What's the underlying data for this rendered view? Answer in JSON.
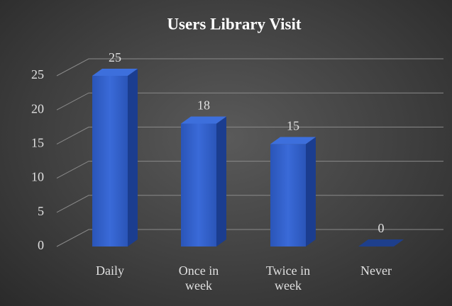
{
  "chart_data": {
    "type": "bar",
    "title": "Users Library Visit",
    "categories": [
      "Daily",
      "Once in week",
      "Twice in week",
      "Never"
    ],
    "values": [
      25,
      18,
      15,
      0
    ],
    "color": "#2f5fc8",
    "ylim": [
      0,
      25
    ],
    "yticks": [
      0,
      5,
      10,
      15,
      20,
      25
    ],
    "grid": true
  }
}
